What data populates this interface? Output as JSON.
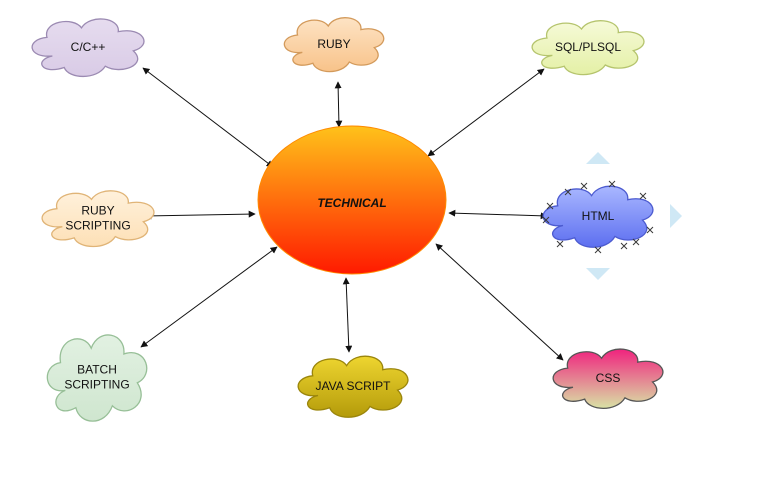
{
  "center": {
    "label": "TECHNICAL"
  },
  "nodes": [
    {
      "id": "c-cpp",
      "label_lines": [
        "C/C++"
      ],
      "fill_top": "#e6dcef",
      "fill_bottom": "#d9cbe6",
      "stroke": "#9b8ab2"
    },
    {
      "id": "ruby",
      "label_lines": [
        "RUBY"
      ],
      "fill_top": "#fde3c4",
      "fill_bottom": "#f8c38a",
      "stroke": "#d39a5b"
    },
    {
      "id": "sql-plsql",
      "label_lines": [
        "SQL/PLSQL"
      ],
      "fill_top": "#f6fad8",
      "fill_bottom": "#e4f0a6",
      "stroke": "#b5c46d"
    },
    {
      "id": "ruby-scripting",
      "label_lines": [
        "RUBY",
        "SCRIPTING"
      ],
      "fill_top": "#fff1dc",
      "fill_bottom": "#fde0b6",
      "stroke": "#e0b477"
    },
    {
      "id": "html",
      "label_lines": [
        "HTML"
      ],
      "fill_top": "#a9b7ff",
      "fill_bottom": "#5d6ff0",
      "stroke": "#4c5bd0",
      "selected": true
    },
    {
      "id": "batch-scripting",
      "label_lines": [
        "BATCH",
        "SCRIPTING"
      ],
      "fill_top": "#e2f1e2",
      "fill_bottom": "#cfe6cf",
      "stroke": "#97bf97"
    },
    {
      "id": "java-script",
      "label_lines": [
        "JAVA SCRIPT"
      ],
      "fill_top": "#eed530",
      "fill_bottom": "#b49b0a",
      "stroke": "#9a850b"
    },
    {
      "id": "css",
      "label_lines": [
        "CSS"
      ],
      "fill_top": "#f0237e",
      "fill_bottom": "#d9e2a5",
      "stroke": "#555555"
    }
  ],
  "edges": [
    {
      "from": "c-cpp",
      "to": "center",
      "arrows": "both"
    },
    {
      "from": "ruby",
      "to": "center",
      "arrows": "both"
    },
    {
      "from": "sql-plsql",
      "to": "center",
      "arrows": "both"
    },
    {
      "from": "ruby-scripting",
      "to": "center",
      "arrows": "both"
    },
    {
      "from": "html",
      "to": "center",
      "arrows": "both"
    },
    {
      "from": "batch-scripting",
      "to": "center",
      "arrows": "both"
    },
    {
      "from": "java-script",
      "to": "center",
      "arrows": "both"
    },
    {
      "from": "css",
      "to": "center",
      "arrows": "both"
    }
  ],
  "colors": {
    "center_top": "#ffc21a",
    "center_bottom": "#ff1a00",
    "center_stroke": "#ff8a00",
    "selection_arrow": "#cfe8f5"
  }
}
